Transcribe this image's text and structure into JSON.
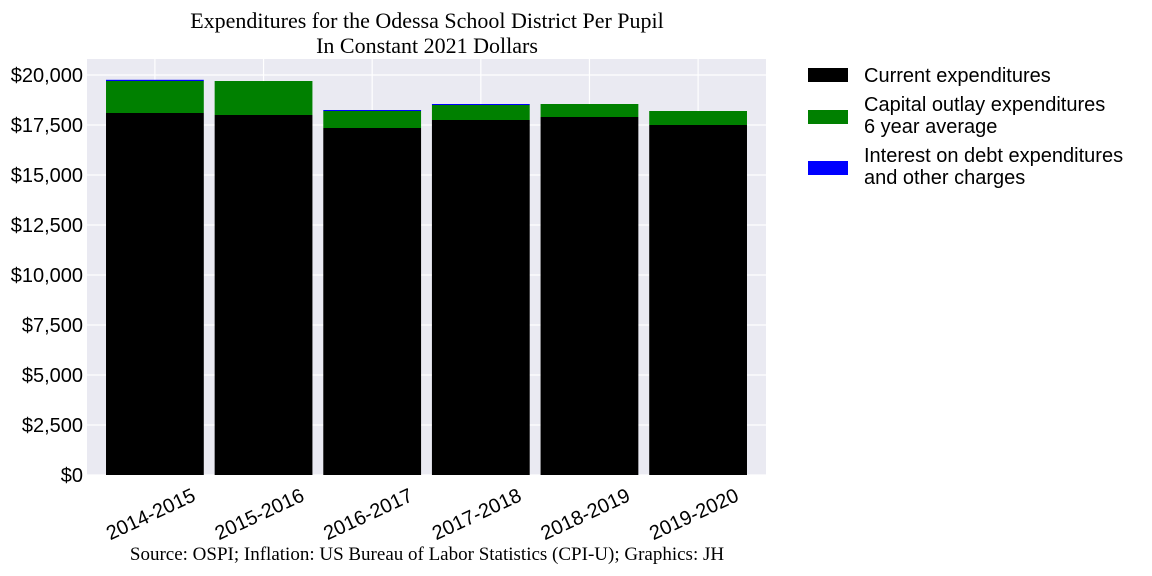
{
  "chart_data": {
    "type": "bar",
    "stacked": true,
    "title": "Expenditures for the Odessa School District Per Pupil",
    "subtitle": "In Constant 2021 Dollars",
    "source": "Source: OSPI; Inflation: US Bureau of Labor Statistics (CPI-U); Graphics: JH",
    "categories": [
      "2014-2015",
      "2015-2016",
      "2016-2017",
      "2017-2018",
      "2018-2019",
      "2019-2020"
    ],
    "series": [
      {
        "name": "Current expenditures",
        "color": "#000000",
        "values": [
          18100,
          18000,
          17350,
          17750,
          17900,
          17500
        ]
      },
      {
        "name": "Capital outlay expenditures\n6 year average",
        "color": "#008000",
        "values": [
          1600,
          1700,
          850,
          750,
          650,
          700
        ]
      },
      {
        "name": "Interest on debt expenditures\nand other charges",
        "color": "#0000ff",
        "values": [
          60,
          0,
          50,
          50,
          0,
          0
        ]
      }
    ],
    "yticks": [
      "$0",
      "$2,500",
      "$5,000",
      "$7,500",
      "$10,000",
      "$12,500",
      "$15,000",
      "$17,500",
      "$20,000"
    ],
    "ytick_values": [
      0,
      2500,
      5000,
      7500,
      10000,
      12500,
      15000,
      17500,
      20000
    ],
    "ylim": [
      0,
      20800
    ],
    "grid": true,
    "legend_position": "outside-right",
    "plot_background": "#eaeaf2"
  }
}
